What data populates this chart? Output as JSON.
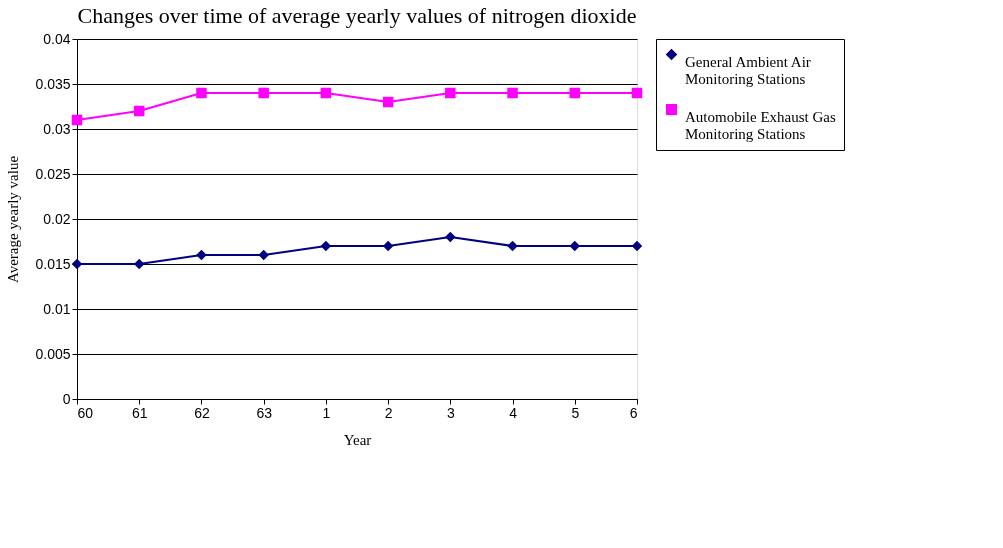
{
  "chart_data": {
    "type": "line",
    "title": "Changes over time of average yearly values of nitrogen dioxide",
    "xlabel": "Year",
    "ylabel": "Average yearly value",
    "categories": [
      "60",
      "61",
      "62",
      "63",
      "1",
      "2",
      "3",
      "4",
      "5",
      "6"
    ],
    "series": [
      {
        "name": "General Ambient Air Monitoring Stations",
        "color": "#000080",
        "marker": "diamond",
        "values": [
          0.015,
          0.015,
          0.016,
          0.016,
          0.017,
          0.017,
          0.018,
          0.017,
          0.017,
          0.017
        ]
      },
      {
        "name": "Automobile Exhaust Gas Monitoring Stations",
        "color": "#ff00ff",
        "marker": "square",
        "values": [
          0.031,
          0.032,
          0.034,
          0.034,
          0.034,
          0.033,
          0.034,
          0.034,
          0.034,
          0.034
        ]
      }
    ],
    "ylim": [
      0,
      0.04
    ],
    "yticks": [
      0,
      0.005,
      0.01,
      0.015,
      0.02,
      0.025,
      0.03,
      0.035,
      0.04
    ],
    "grid": "y",
    "legend": "right",
    "line_style": "solid"
  }
}
